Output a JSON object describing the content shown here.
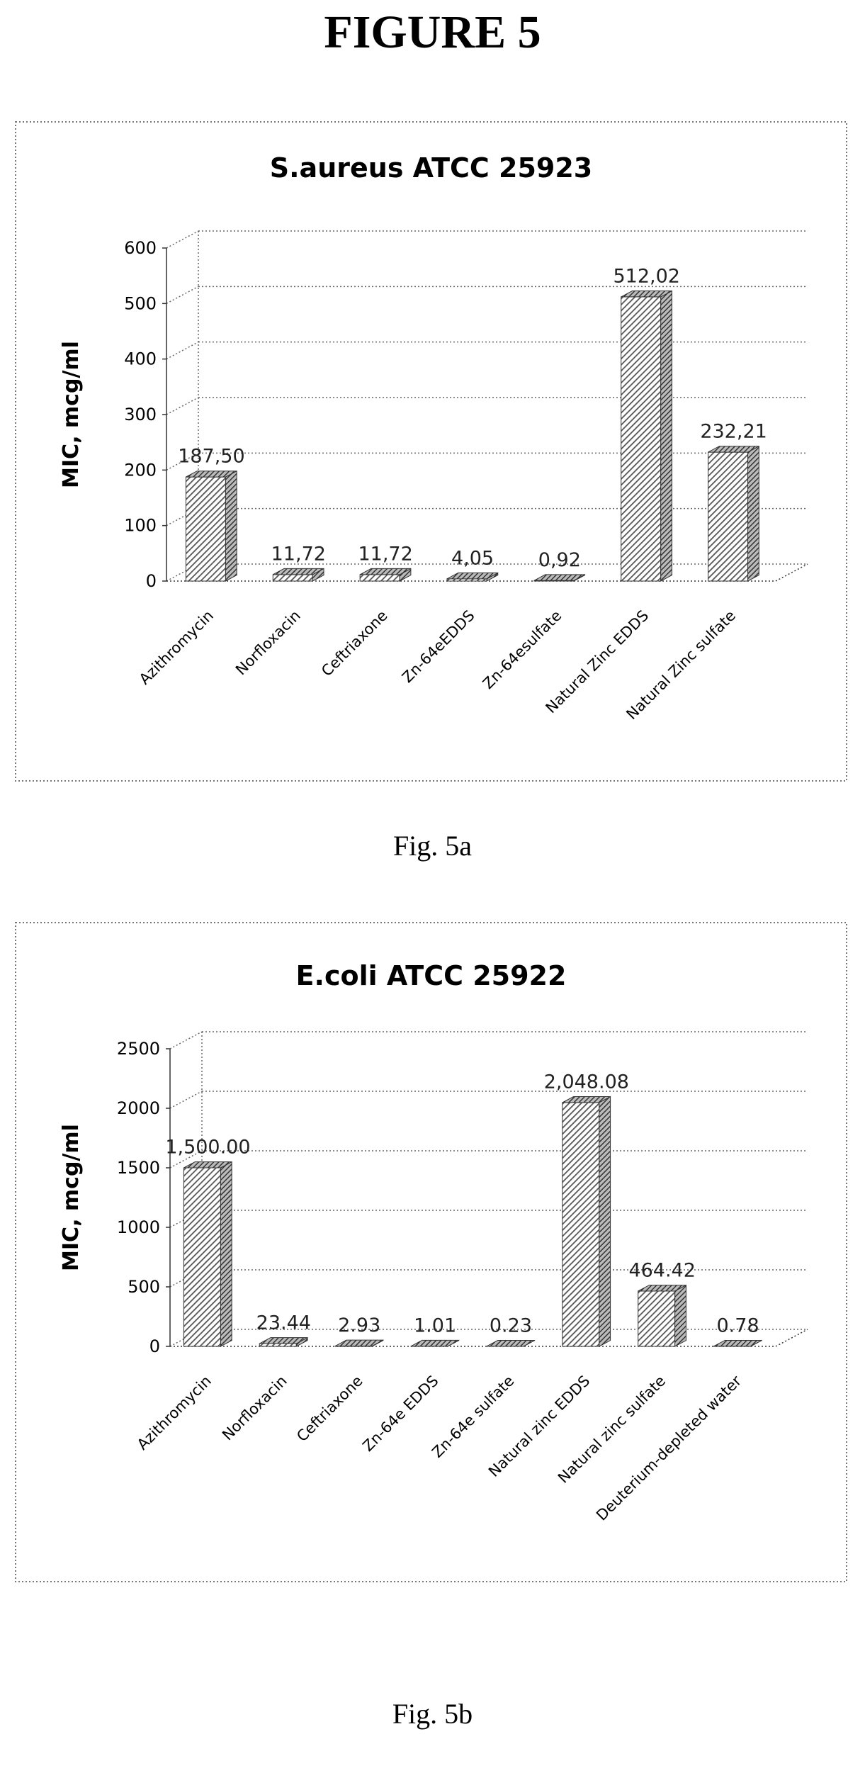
{
  "page": {
    "figure_title": "FIGURE 5",
    "captions": [
      "Fig. 5a",
      "Fig. 5b"
    ]
  },
  "chart_data": [
    {
      "type": "bar",
      "title": "S.aureus ATCC 25923",
      "xlabel": "",
      "ylabel": "MIC, mcg/ml",
      "ylim": [
        0,
        600
      ],
      "yticks": [
        0,
        100,
        200,
        300,
        400,
        500,
        600
      ],
      "categories": [
        "Azithromycin",
        "Norfloxacin",
        "Ceftriaxone",
        "Zn-64eEDDS",
        "Zn-64esulfate",
        "Natural Zinc EDDS",
        "Natural Zinc sulfate"
      ],
      "values": [
        187.5,
        11.72,
        11.72,
        4.05,
        0.92,
        512.02,
        232.21
      ],
      "data_labels": [
        "187,50",
        "11,72",
        "11,72",
        "4,05",
        "0,92",
        "512,02",
        "232,21"
      ],
      "grid": true,
      "style": "3d-hatched",
      "bar_color": "#555555"
    },
    {
      "type": "bar",
      "title": "E.coli ATCC 25922",
      "xlabel": "",
      "ylabel": "MIC, mcg/ml",
      "ylim": [
        0,
        2500
      ],
      "yticks": [
        0,
        500,
        1000,
        1500,
        2000,
        2500
      ],
      "categories": [
        "Azithromycin",
        "Norfloxacin",
        "Ceftriaxone",
        "Zn-64e EDDS",
        "Zn-64e sulfate",
        "Natural zinc EDDS",
        "Natural zinc sulfate",
        "Deuterium-depleted water"
      ],
      "values": [
        1500.0,
        23.44,
        2.93,
        1.01,
        0.23,
        2048.08,
        464.42,
        0.78
      ],
      "data_labels": [
        "1,500.00",
        "23.44",
        "2.93",
        "1.01",
        "0.23",
        "2,048.08",
        "464.42",
        "0.78"
      ],
      "grid": true,
      "style": "3d-hatched",
      "bar_color": "#555555"
    }
  ]
}
